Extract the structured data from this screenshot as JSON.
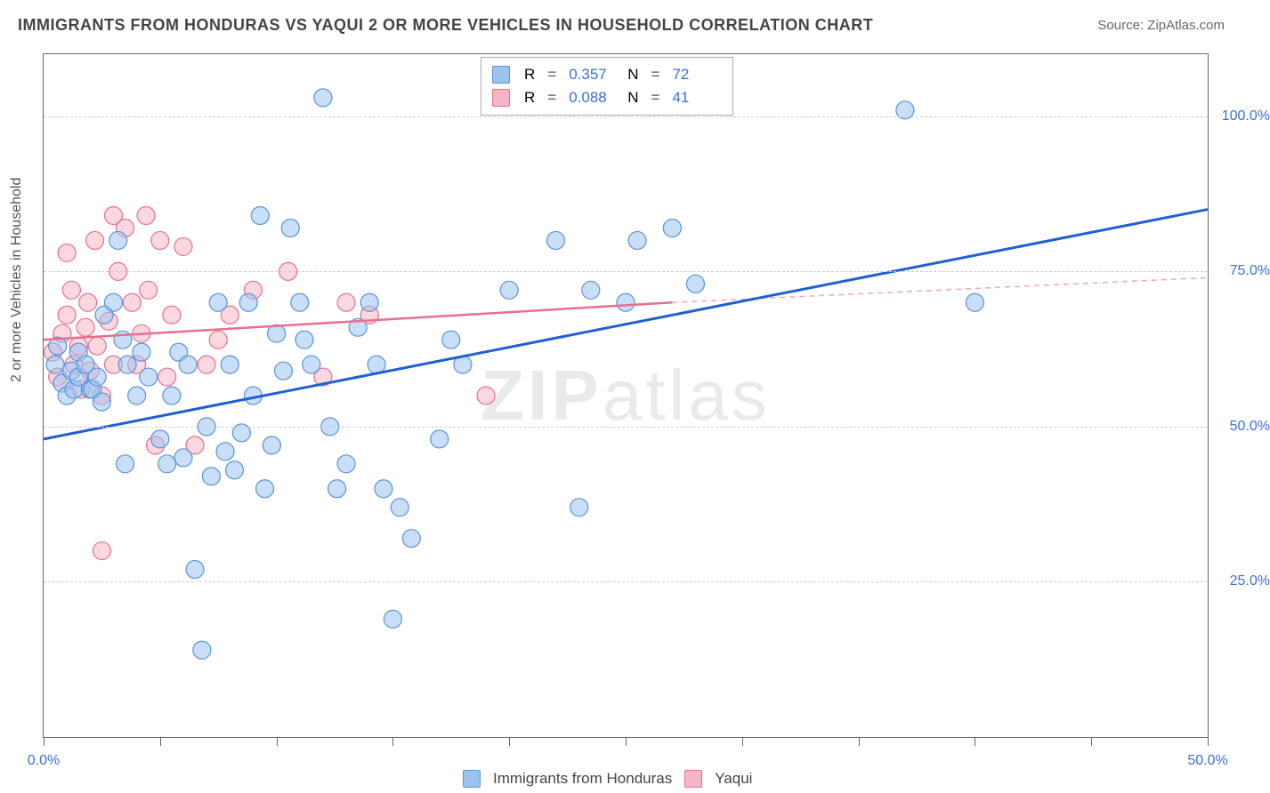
{
  "title": "IMMIGRANTS FROM HONDURAS VS YAQUI 2 OR MORE VEHICLES IN HOUSEHOLD CORRELATION CHART",
  "source_label": "Source:",
  "source_value": "ZipAtlas.com",
  "yaxis": "2 or more Vehicles in Household",
  "watermark_bold": "ZIP",
  "watermark_light": "atlas",
  "chart": {
    "type": "scatter",
    "xlim": [
      0,
      50
    ],
    "ylim": [
      0,
      110
    ],
    "y_gridlines": [
      25,
      50,
      75,
      100
    ],
    "y_tick_labels": [
      "25.0%",
      "50.0%",
      "75.0%",
      "100.0%"
    ],
    "x_ticks": [
      0,
      5,
      10,
      15,
      20,
      25,
      30,
      35,
      40,
      45,
      50
    ],
    "x_tick_labels_shown": {
      "0": "0.0%",
      "50": "50.0%"
    },
    "grid_color": "#cccccc",
    "axis_color": "#666666",
    "background": "#ffffff",
    "label_color": "#3b6fd6",
    "series": [
      {
        "name": "Immigrants from Honduras",
        "fill": "#9cc3f0",
        "stroke": "#5a93d8",
        "fill_opacity": 0.55,
        "marker_radius": 10,
        "trend": {
          "x1": 0,
          "y1": 48,
          "x2": 50,
          "y2": 85,
          "color": "#1e5fd6",
          "width": 3,
          "dash": "none"
        },
        "r_value": "0.357",
        "n_value": "72",
        "points": [
          [
            0.5,
            60
          ],
          [
            0.6,
            63
          ],
          [
            0.8,
            57
          ],
          [
            1.0,
            55
          ],
          [
            1.2,
            59
          ],
          [
            1.3,
            56
          ],
          [
            1.5,
            58
          ],
          [
            1.5,
            62
          ],
          [
            1.8,
            60
          ],
          [
            2.0,
            56
          ],
          [
            2.1,
            56
          ],
          [
            2.3,
            58
          ],
          [
            2.5,
            54
          ],
          [
            2.6,
            68
          ],
          [
            3.0,
            70
          ],
          [
            3.2,
            80
          ],
          [
            3.4,
            64
          ],
          [
            3.5,
            44
          ],
          [
            3.6,
            60
          ],
          [
            4.0,
            55
          ],
          [
            4.2,
            62
          ],
          [
            4.5,
            58
          ],
          [
            5.0,
            48
          ],
          [
            5.3,
            44
          ],
          [
            5.5,
            55
          ],
          [
            5.8,
            62
          ],
          [
            6.0,
            45
          ],
          [
            6.2,
            60
          ],
          [
            6.5,
            27
          ],
          [
            6.8,
            14
          ],
          [
            7.0,
            50
          ],
          [
            7.2,
            42
          ],
          [
            7.5,
            70
          ],
          [
            7.8,
            46
          ],
          [
            8.0,
            60
          ],
          [
            8.2,
            43
          ],
          [
            8.5,
            49
          ],
          [
            8.8,
            70
          ],
          [
            9.0,
            55
          ],
          [
            9.3,
            84
          ],
          [
            9.5,
            40
          ],
          [
            9.8,
            47
          ],
          [
            10.0,
            65
          ],
          [
            10.3,
            59
          ],
          [
            10.6,
            82
          ],
          [
            11.0,
            70
          ],
          [
            11.2,
            64
          ],
          [
            11.5,
            60
          ],
          [
            12.0,
            103
          ],
          [
            12.3,
            50
          ],
          [
            12.6,
            40
          ],
          [
            13.0,
            44
          ],
          [
            13.5,
            66
          ],
          [
            14.0,
            70
          ],
          [
            14.3,
            60
          ],
          [
            14.6,
            40
          ],
          [
            15.0,
            19
          ],
          [
            15.3,
            37
          ],
          [
            15.8,
            32
          ],
          [
            17.0,
            48
          ],
          [
            17.5,
            64
          ],
          [
            18.0,
            60
          ],
          [
            20.0,
            72
          ],
          [
            22.0,
            80
          ],
          [
            23.0,
            37
          ],
          [
            23.5,
            72
          ],
          [
            25.0,
            70
          ],
          [
            25.5,
            80
          ],
          [
            27.0,
            82
          ],
          [
            28.0,
            73
          ],
          [
            37.0,
            101
          ],
          [
            40.0,
            70
          ]
        ]
      },
      {
        "name": "Yaqui",
        "fill": "#f7b6c5",
        "stroke": "#e86f8d",
        "fill_opacity": 0.55,
        "marker_radius": 10,
        "trend_solid": {
          "x1": 0,
          "y1": 64,
          "x2": 27,
          "y2": 70,
          "color": "#e86f8d",
          "width": 2.5
        },
        "trend_dash": {
          "x1": 27,
          "y1": 70,
          "x2": 50,
          "y2": 74,
          "color": "#f2a6b8",
          "width": 1.5,
          "dash": "6,5"
        },
        "r_value": "0.088",
        "n_value": "41",
        "points": [
          [
            0.4,
            62
          ],
          [
            0.6,
            58
          ],
          [
            0.8,
            65
          ],
          [
            1.0,
            78
          ],
          [
            1.0,
            68
          ],
          [
            1.2,
            72
          ],
          [
            1.3,
            60
          ],
          [
            1.5,
            63
          ],
          [
            1.6,
            56
          ],
          [
            1.8,
            66
          ],
          [
            1.9,
            70
          ],
          [
            2.0,
            59
          ],
          [
            2.2,
            80
          ],
          [
            2.3,
            63
          ],
          [
            2.5,
            55
          ],
          [
            2.5,
            30
          ],
          [
            2.8,
            67
          ],
          [
            3.0,
            84
          ],
          [
            3.0,
            60
          ],
          [
            3.2,
            75
          ],
          [
            3.5,
            82
          ],
          [
            3.8,
            70
          ],
          [
            4.0,
            60
          ],
          [
            4.2,
            65
          ],
          [
            4.4,
            84
          ],
          [
            4.5,
            72
          ],
          [
            4.8,
            47
          ],
          [
            5.0,
            80
          ],
          [
            5.3,
            58
          ],
          [
            5.5,
            68
          ],
          [
            6.0,
            79
          ],
          [
            6.5,
            47
          ],
          [
            7.0,
            60
          ],
          [
            7.5,
            64
          ],
          [
            8.0,
            68
          ],
          [
            9.0,
            72
          ],
          [
            10.5,
            75
          ],
          [
            12.0,
            58
          ],
          [
            13.0,
            70
          ],
          [
            14.0,
            68
          ],
          [
            19.0,
            55
          ]
        ]
      }
    ]
  },
  "legend_top": {
    "rows": [
      {
        "swatch_fill": "#9cc3f0",
        "swatch_stroke": "#5a93d8",
        "r": "0.357",
        "n": "72"
      },
      {
        "swatch_fill": "#f7b6c5",
        "swatch_stroke": "#e86f8d",
        "r": "0.088",
        "n": "41"
      }
    ],
    "r_label": "R",
    "n_label": "N",
    "eq": "="
  },
  "legend_bottom": {
    "items": [
      {
        "swatch_fill": "#9cc3f0",
        "swatch_stroke": "#5a93d8",
        "label": "Immigrants from Honduras"
      },
      {
        "swatch_fill": "#f7b6c5",
        "swatch_stroke": "#e86f8d",
        "label": "Yaqui"
      }
    ]
  }
}
